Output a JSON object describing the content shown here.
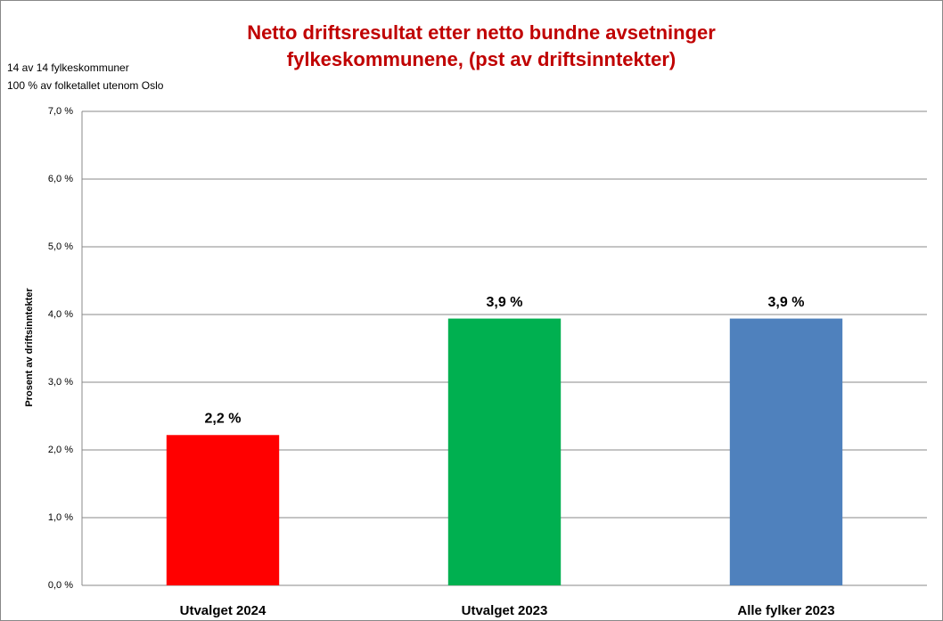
{
  "chart_data": {
    "type": "bar",
    "title": [
      "Netto driftsresultat etter netto bundne avsetninger",
      "fylkeskommunene, (pst av driftsinntekter)"
    ],
    "notes": [
      "14 av 14 fylkeskommuner",
      "100 % av folketallet utenom Oslo"
    ],
    "y_label": "Prosent av driftsinntekter",
    "categories": [
      "Utvalget 2024",
      "Utvalget 2023",
      "Alle fylker 2023"
    ],
    "values": [
      2.22,
      3.94,
      3.94
    ],
    "value_labels": [
      "2,2 %",
      "3,9 %",
      "3,9 %"
    ],
    "colors": [
      "#ff0000",
      "#00b050",
      "#4f81bd"
    ],
    "ylim": [
      0,
      7
    ],
    "yticks": [
      {
        "value": 0,
        "label": "0,0 %"
      },
      {
        "value": 1,
        "label": "1,0 %"
      },
      {
        "value": 2,
        "label": "2,0 %"
      },
      {
        "value": 3,
        "label": "3,0 %"
      },
      {
        "value": 4,
        "label": "4,0 %"
      },
      {
        "value": 5,
        "label": "5,0 %"
      },
      {
        "value": 6,
        "label": "6,0 %"
      },
      {
        "value": 7,
        "label": "7,0 %"
      }
    ],
    "grid": true
  }
}
